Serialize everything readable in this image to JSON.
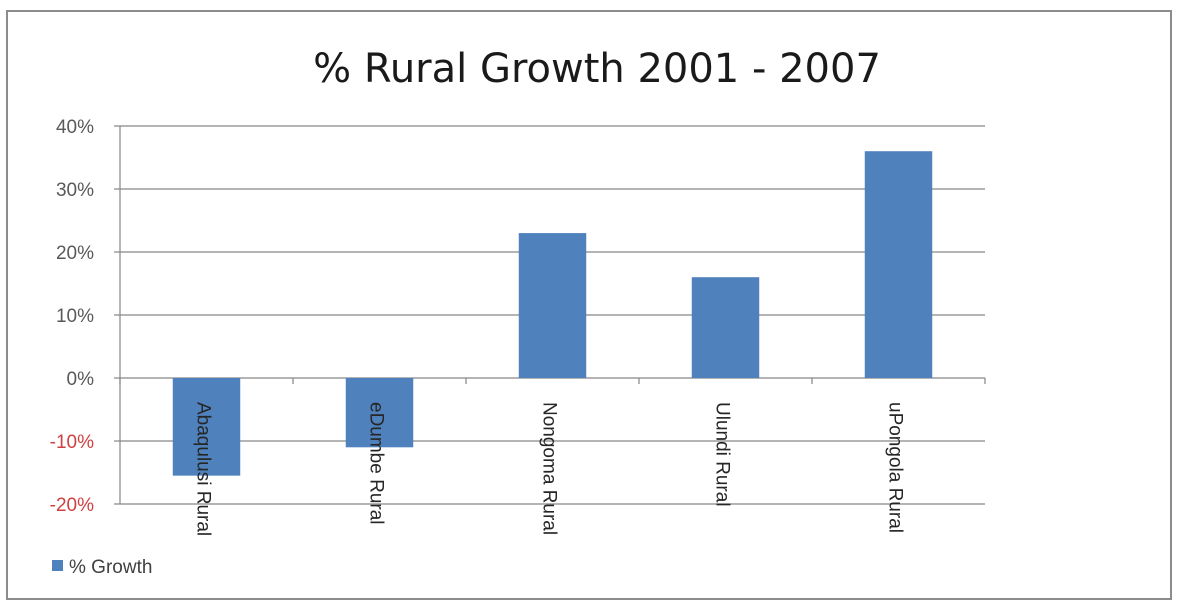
{
  "chart_data": {
    "type": "bar",
    "title": "% Rural Growth 2001 - 2007",
    "categories": [
      "Abaqulusi Rural",
      "eDumbe Rural",
      "Nongoma Rural",
      "Ulundi Rural",
      "uPongola Rural"
    ],
    "series": [
      {
        "name": "% Growth",
        "values": [
          -15.5,
          -11,
          23,
          16,
          36
        ]
      }
    ],
    "y_ticks": [
      "40%",
      "30%",
      "20%",
      "10%",
      "0%",
      "-10%",
      "-20%"
    ],
    "y_tick_values": [
      40,
      30,
      20,
      10,
      0,
      -10,
      -20
    ],
    "ylim": [
      -20,
      40
    ],
    "grid": true,
    "legend_position": "bottom-left",
    "colors": {
      "bar": "#4f81bd",
      "grid": "#868686",
      "negative_tick": "#d04040"
    }
  }
}
